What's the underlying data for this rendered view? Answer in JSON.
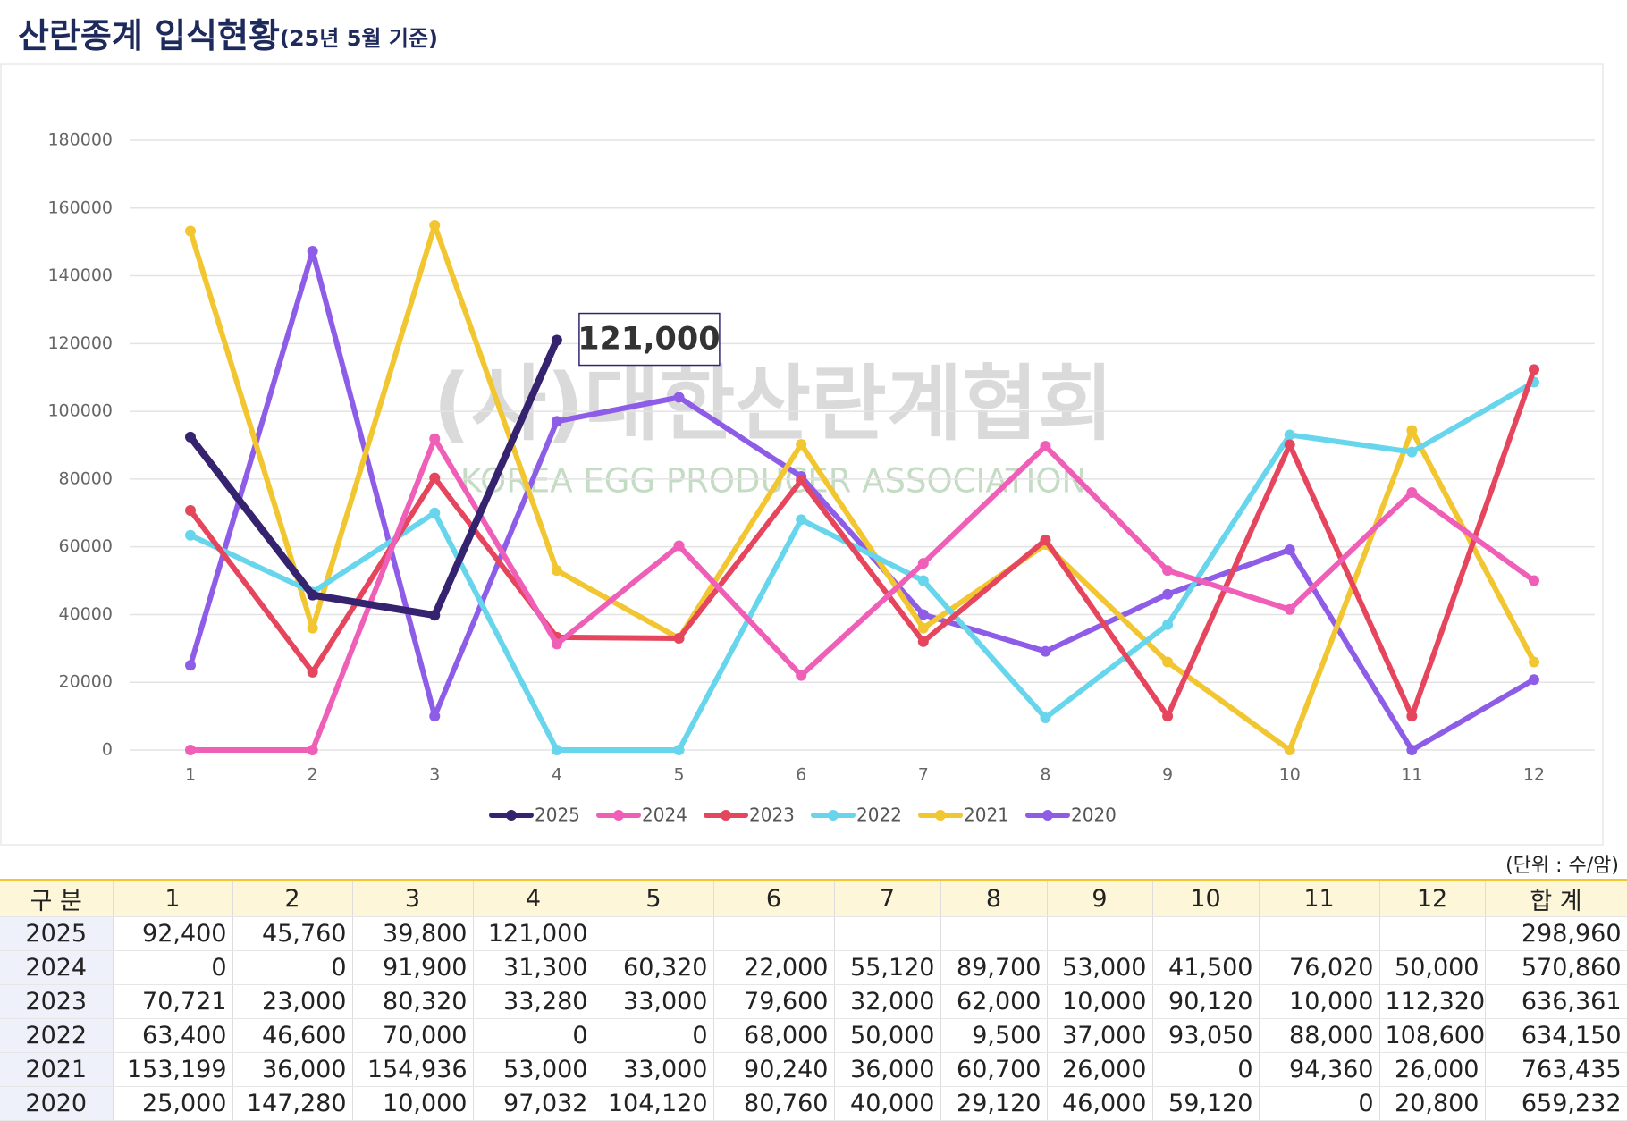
{
  "chart_data": {
    "type": "line",
    "title": "산란종계 입식현황",
    "subtitle": "(25년 5월 기준)",
    "watermark": [
      "(사)대한산란계협회",
      "KOREA EGG PRODUCER ASSOCIATION"
    ],
    "categories": [
      "1",
      "2",
      "3",
      "4",
      "5",
      "6",
      "7",
      "8",
      "9",
      "10",
      "11",
      "12"
    ],
    "ylim": [
      0,
      180000
    ],
    "yticks": [
      0,
      20000,
      40000,
      60000,
      80000,
      100000,
      120000,
      140000,
      160000,
      180000
    ],
    "grid": true,
    "legend": "bottom",
    "series": [
      {
        "name": "2025",
        "color": "#35236f",
        "values": [
          92400,
          45760,
          39800,
          121000,
          null,
          null,
          null,
          null,
          null,
          null,
          null,
          null
        ],
        "value_labels": [
          null,
          null,
          null,
          "121,000",
          null,
          null,
          null,
          null,
          null,
          null,
          null,
          null
        ]
      },
      {
        "name": "2024",
        "color": "#ef5fb8",
        "values": [
          0,
          0,
          91900,
          31300,
          60320,
          22000,
          55120,
          89700,
          53000,
          41500,
          76020,
          50000
        ]
      },
      {
        "name": "2023",
        "color": "#e5465d",
        "values": [
          70721,
          23000,
          80320,
          33280,
          33000,
          79600,
          32000,
          62000,
          10000,
          90120,
          10000,
          112320
        ]
      },
      {
        "name": "2022",
        "color": "#67d5ec",
        "values": [
          63400,
          46600,
          70000,
          0,
          0,
          68000,
          50000,
          9500,
          37000,
          93050,
          88000,
          108600
        ]
      },
      {
        "name": "2021",
        "color": "#f2c630",
        "values": [
          153199,
          36000,
          154936,
          53000,
          33000,
          90240,
          36000,
          60700,
          26000,
          0,
          94360,
          26000
        ]
      },
      {
        "name": "2020",
        "color": "#8e5de8",
        "values": [
          25000,
          147280,
          10000,
          97032,
          104120,
          80760,
          40000,
          29120,
          46000,
          59120,
          0,
          20800
        ]
      }
    ]
  },
  "table": {
    "unit": "(단위 : 수/암)",
    "columns": [
      "구 분",
      "1",
      "2",
      "3",
      "4",
      "5",
      "6",
      "7",
      "8",
      "9",
      "10",
      "11",
      "12",
      "합 계"
    ],
    "rows": [
      [
        "2025",
        "92,400",
        "45,760",
        "39,800",
        "121,000",
        null,
        null,
        null,
        null,
        null,
        null,
        null,
        null,
        "298,960"
      ],
      [
        "2024",
        "0",
        "0",
        "91,900",
        "31,300",
        "60,320",
        "22,000",
        "55,120",
        "89,700",
        "53,000",
        "41,500",
        "76,020",
        "50,000",
        "570,860"
      ],
      [
        "2023",
        "70,721",
        "23,000",
        "80,320",
        "33,280",
        "33,000",
        "79,600",
        "32,000",
        "62,000",
        "10,000",
        "90,120",
        "10,000",
        "112,320",
        "636,361"
      ],
      [
        "2022",
        "63,400",
        "46,600",
        "70,000",
        "0",
        "0",
        "68,000",
        "50,000",
        "9,500",
        "37,000",
        "93,050",
        "88,000",
        "108,600",
        "634,150"
      ],
      [
        "2021",
        "153,199",
        "36,000",
        "154,936",
        "53,000",
        "33,000",
        "90,240",
        "36,000",
        "60,700",
        "26,000",
        "0",
        "94,360",
        "26,000",
        "763,435"
      ],
      [
        "2020",
        "25,000",
        "147,280",
        "10,000",
        "97,032",
        "104,120",
        "80,760",
        "40,000",
        "29,120",
        "46,000",
        "59,120",
        "0",
        "20,800",
        "659,232"
      ]
    ]
  }
}
